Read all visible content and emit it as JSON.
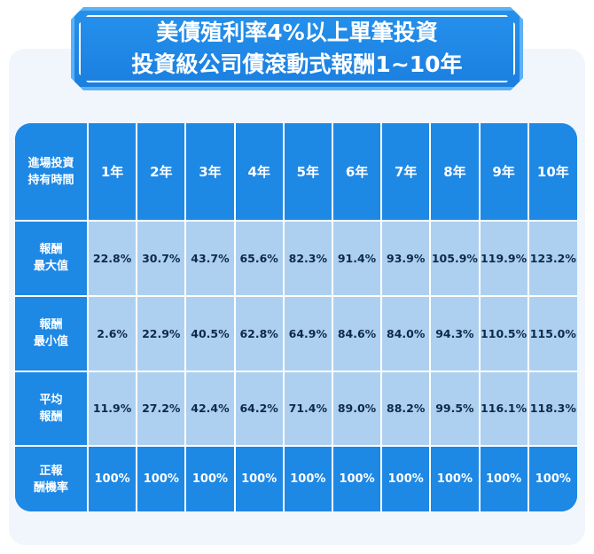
{
  "title": {
    "line1": "美債殖利率4%以上單筆投資",
    "line2": "投資級公司債滾動式報酬1~10年"
  },
  "table": {
    "corner_line1": "進場投資",
    "corner_line2": "持有時間",
    "years": [
      "1年",
      "2年",
      "3年",
      "4年",
      "5年",
      "6年",
      "7年",
      "8年",
      "9年",
      "10年"
    ],
    "rows": [
      {
        "label_line1": "報酬",
        "label_line2": "最大值",
        "values": [
          "22.8%",
          "30.7%",
          "43.7%",
          "65.6%",
          "82.3%",
          "91.4%",
          "93.9%",
          "105.9%",
          "119.9%",
          "123.2%"
        ]
      },
      {
        "label_line1": "報酬",
        "label_line2": "最小值",
        "values": [
          "2.6%",
          "22.9%",
          "40.5%",
          "62.8%",
          "64.9%",
          "84.6%",
          "84.0%",
          "94.3%",
          "110.5%",
          "115.0%"
        ]
      },
      {
        "label_line1": "平均",
        "label_line2": "報酬",
        "values": [
          "11.9%",
          "27.2%",
          "42.4%",
          "64.2%",
          "71.4%",
          "89.0%",
          "88.2%",
          "99.5%",
          "116.1%",
          "118.3%"
        ]
      },
      {
        "label_line1": "正報",
        "label_line2": "酬機率",
        "values": [
          "100%",
          "100%",
          "100%",
          "100%",
          "100%",
          "100%",
          "100%",
          "100%",
          "100%",
          "100%"
        ]
      }
    ]
  },
  "colors": {
    "header_blue": "#1e88e5",
    "cell_light_blue": "#aed0f0",
    "panel_bg": "#f1f6fd"
  }
}
